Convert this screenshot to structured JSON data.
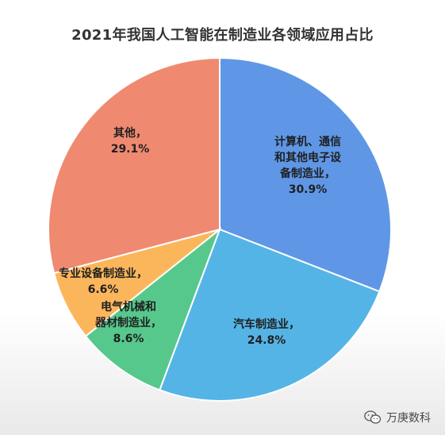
{
  "chart_data": {
    "type": "pie",
    "title": "2021年我国人工智能在制造业各领域应用占比",
    "slices": [
      {
        "name": "计算机、通信和其他电子设备制造业",
        "value": 30.9,
        "label_lines": [
          "计算机、通信",
          "和其他电子设",
          "备制造业，",
          "30.9%"
        ],
        "color": "#5f97e6"
      },
      {
        "name": "汽车制造业",
        "value": 24.8,
        "label_lines": [
          "汽车制造业，",
          "24.8%"
        ],
        "color": "#55b4e6"
      },
      {
        "name": "电气机械和器材制造业",
        "value": 8.6,
        "label_lines": [
          "电气机械和",
          "器材制造业，",
          "8.6%"
        ],
        "color": "#57c88c"
      },
      {
        "name": "专业设备制造业",
        "value": 6.6,
        "label_lines": [
          "专业设备制造业，",
          "6.6%"
        ],
        "color": "#fbb65c"
      },
      {
        "name": "其他",
        "value": 29.1,
        "label_lines": [
          "其他，",
          "29.1%"
        ],
        "color": "#ef8a70"
      }
    ]
  },
  "watermark": {
    "text": "万庚数科",
    "icon": "wechat-icon"
  }
}
